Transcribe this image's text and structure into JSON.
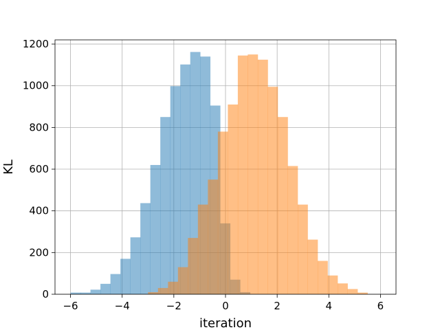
{
  "chart_data": {
    "type": "bar",
    "xlabel": "iteration",
    "ylabel": "KL",
    "xlim": [
      -6.6,
      6.6
    ],
    "ylim": [
      0,
      1220
    ],
    "xticks": [
      -6,
      -4,
      -2,
      0,
      2,
      4,
      6
    ],
    "yticks": [
      0,
      200,
      400,
      600,
      800,
      1000,
      1200
    ],
    "grid": true,
    "histogram": true,
    "series": [
      {
        "color": "#1f77b4",
        "opacity": 0.5,
        "bin_width": 0.3863,
        "bin_edges_start": -6.0,
        "values": [
          8,
          8,
          22,
          50,
          97,
          170,
          273,
          437,
          620,
          850,
          998,
          1102,
          1162,
          1140,
          905,
          340,
          70,
          10
        ]
      },
      {
        "color": "#ff7f0e",
        "opacity": 0.5,
        "bin_width": 0.3863,
        "bin_edges_start": -3.0,
        "values": [
          10,
          30,
          60,
          130,
          270,
          430,
          550,
          780,
          910,
          1145,
          1150,
          1125,
          995,
          850,
          615,
          430,
          262,
          160,
          90,
          52,
          25,
          8
        ]
      }
    ]
  }
}
